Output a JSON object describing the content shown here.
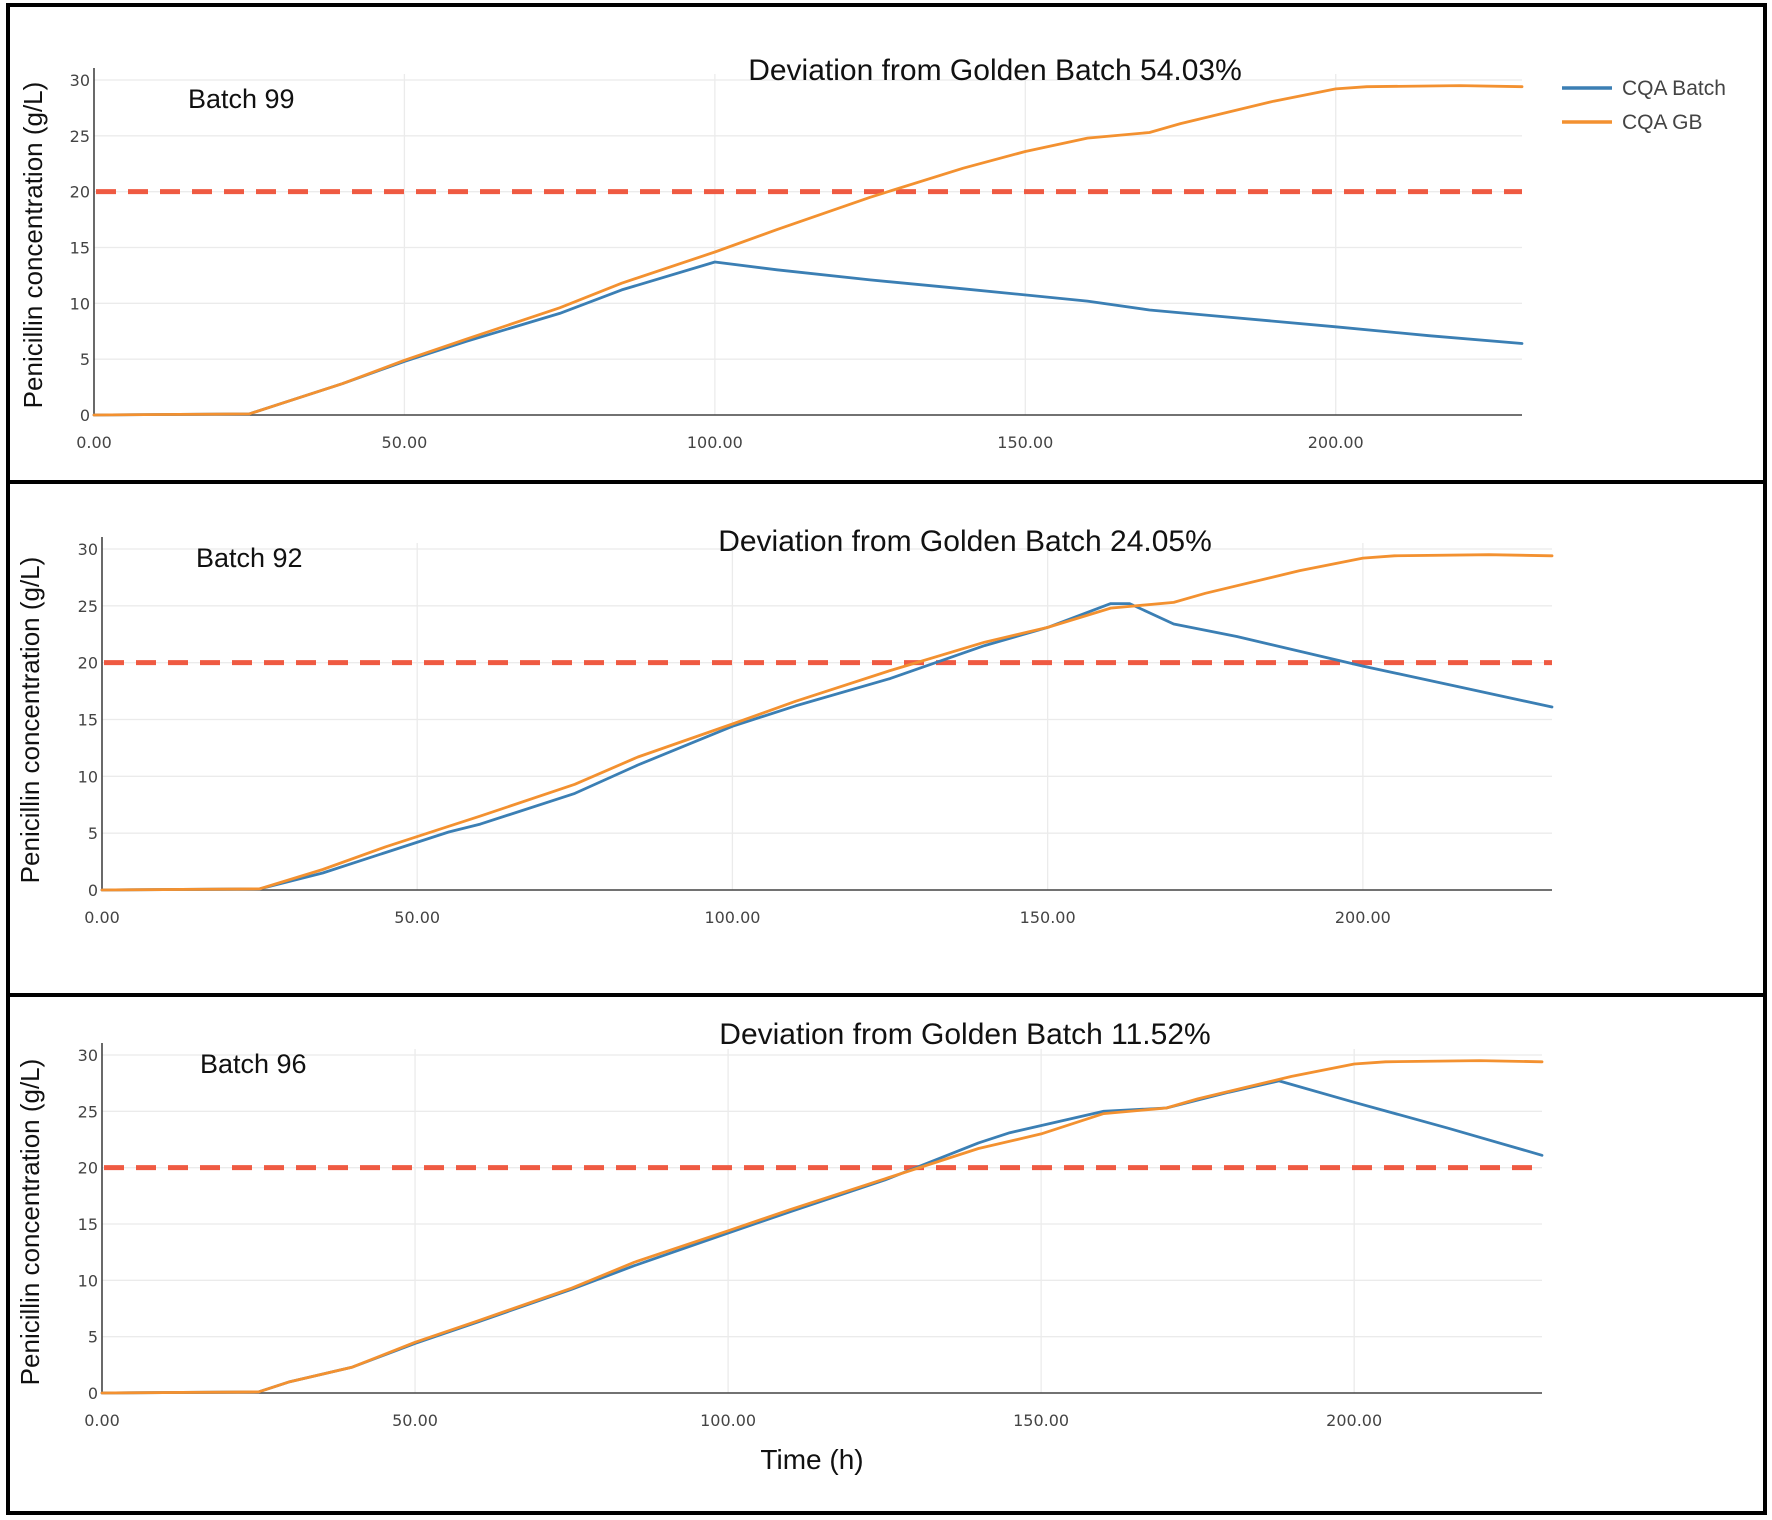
{
  "colors": {
    "cqa_batch": "#3b7fb4",
    "cqa_gb": "#f39130",
    "threshold": "#ef5a42"
  },
  "legend": {
    "items": [
      {
        "label": "CQA Batch",
        "color": "#3b7fb4"
      },
      {
        "label": "CQA GB",
        "color": "#f39130"
      }
    ]
  },
  "chart_data": [
    {
      "type": "line",
      "title": "Deviation from Golden Batch 54.03%",
      "annotation": "Batch 99",
      "xlabel": "",
      "ylabel": "Penicillin concentration (g/L)",
      "xlim": [
        0,
        230
      ],
      "ylim": [
        0,
        30
      ],
      "x_ticks": [
        0,
        50,
        100,
        150,
        200
      ],
      "x_tick_labels": [
        "0.00",
        "50.00",
        "100.00",
        "150.00",
        "200.00"
      ],
      "y_ticks": [
        0,
        5,
        10,
        15,
        20,
        25,
        30
      ],
      "y_tick_labels": [
        "0",
        "5",
        "10",
        "15",
        "20",
        "25",
        "30"
      ],
      "threshold": 20,
      "grid": true,
      "series": [
        {
          "name": "CQA Batch",
          "color": "#3b7fb4",
          "x": [
            0,
            25,
            30,
            40,
            50,
            60,
            75,
            85,
            100,
            110,
            125,
            140,
            160,
            170,
            180,
            200,
            215,
            230
          ],
          "y": [
            0,
            0.1,
            1,
            2.8,
            4.8,
            6.6,
            9.1,
            11.2,
            13.7,
            13,
            12.1,
            11.3,
            10.2,
            9.4,
            8.9,
            7.9,
            7.1,
            6.4
          ]
        },
        {
          "name": "CQA GB",
          "color": "#f39130",
          "x": [
            0,
            25,
            30,
            40,
            50,
            60,
            75,
            85,
            100,
            110,
            125,
            140,
            150,
            160,
            170,
            175,
            190,
            200,
            205,
            220,
            230
          ],
          "y": [
            0,
            0.1,
            1,
            2.8,
            4.9,
            6.8,
            9.6,
            11.8,
            14.6,
            16.6,
            19.5,
            22.1,
            23.6,
            24.8,
            25.3,
            26.1,
            28.1,
            29.2,
            29.4,
            29.5,
            29.4
          ]
        }
      ]
    },
    {
      "type": "line",
      "title": "Deviation from Golden Batch 24.05%",
      "annotation": "Batch 92",
      "xlabel": "",
      "ylabel": "Penicillin concentration (g/L)",
      "xlim": [
        0,
        230
      ],
      "ylim": [
        0,
        30
      ],
      "x_ticks": [
        0,
        50,
        100,
        150,
        200
      ],
      "x_tick_labels": [
        "0.00",
        "50.00",
        "100.00",
        "150.00",
        "200.00"
      ],
      "y_ticks": [
        0,
        5,
        10,
        15,
        20,
        25,
        30
      ],
      "y_tick_labels": [
        "0",
        "5",
        "10",
        "15",
        "20",
        "25",
        "30"
      ],
      "threshold": 20,
      "grid": true,
      "series": [
        {
          "name": "CQA Batch",
          "color": "#3b7fb4",
          "x": [
            0,
            25,
            35,
            45,
            55,
            60,
            75,
            85,
            100,
            110,
            125,
            140,
            150,
            160,
            163,
            170,
            180,
            200,
            215,
            230
          ],
          "y": [
            0,
            0.1,
            1.5,
            3.3,
            5.1,
            5.8,
            8.5,
            11,
            14.4,
            16.2,
            18.6,
            21.5,
            23.1,
            25.2,
            25.2,
            23.4,
            22.3,
            19.7,
            17.9,
            16.1
          ]
        },
        {
          "name": "CQA GB",
          "color": "#f39130",
          "x": [
            0,
            25,
            35,
            45,
            55,
            60,
            75,
            85,
            100,
            110,
            125,
            140,
            150,
            160,
            170,
            175,
            190,
            200,
            205,
            220,
            230
          ],
          "y": [
            0,
            0.1,
            1.8,
            3.8,
            5.6,
            6.5,
            9.3,
            11.7,
            14.6,
            16.6,
            19.3,
            21.8,
            23.1,
            24.8,
            25.3,
            26.1,
            28.1,
            29.2,
            29.4,
            29.5,
            29.4
          ]
        }
      ]
    },
    {
      "type": "line",
      "title": "Deviation from Golden Batch 11.52%",
      "annotation": "Batch 96",
      "xlabel": "Time (h)",
      "ylabel": "Penicillin concentration (g/L)",
      "xlim": [
        0,
        230
      ],
      "ylim": [
        0,
        30
      ],
      "x_ticks": [
        0,
        50,
        100,
        150,
        200
      ],
      "x_tick_labels": [
        "0.00",
        "50.00",
        "100.00",
        "150.00",
        "200.00"
      ],
      "y_ticks": [
        0,
        5,
        10,
        15,
        20,
        25,
        30
      ],
      "y_tick_labels": [
        "0",
        "5",
        "10",
        "15",
        "20",
        "25",
        "30"
      ],
      "threshold": 20,
      "grid": true,
      "series": [
        {
          "name": "CQA Batch",
          "color": "#3b7fb4",
          "x": [
            0,
            25,
            30,
            40,
            50,
            60,
            75,
            85,
            100,
            110,
            125,
            140,
            145,
            160,
            170,
            180,
            188,
            200,
            215,
            230
          ],
          "y": [
            0,
            0.1,
            1,
            2.3,
            4.4,
            6.3,
            9.2,
            11.3,
            14.2,
            16.1,
            18.9,
            22.2,
            23.1,
            25,
            25.3,
            26.7,
            27.7,
            25.8,
            23.5,
            21.1
          ]
        },
        {
          "name": "CQA GB",
          "color": "#f39130",
          "x": [
            0,
            25,
            30,
            40,
            50,
            60,
            75,
            85,
            100,
            110,
            125,
            140,
            150,
            160,
            170,
            175,
            190,
            200,
            205,
            220,
            230
          ],
          "y": [
            0,
            0.1,
            1,
            2.3,
            4.5,
            6.4,
            9.3,
            11.6,
            14.4,
            16.3,
            19,
            21.7,
            23,
            24.8,
            25.3,
            26.1,
            28.1,
            29.2,
            29.4,
            29.5,
            29.4
          ]
        }
      ]
    }
  ]
}
